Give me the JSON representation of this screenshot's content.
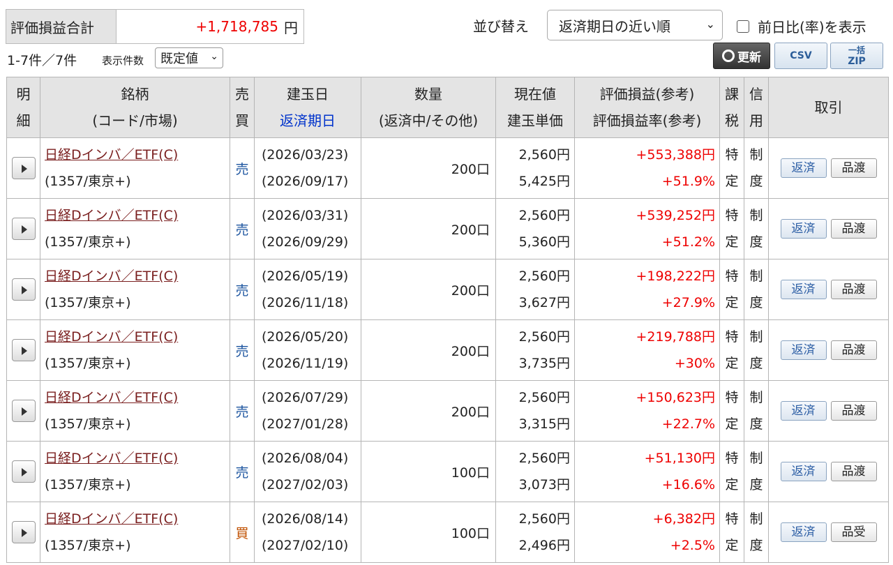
{
  "summary": {
    "label": "評価損益合計",
    "value": "+1,718,785",
    "unit": "円"
  },
  "sort": {
    "label": "並び替え",
    "selected": "返済期日の近い順",
    "toggle_label": "前日比(率)を表示"
  },
  "list": {
    "count": "1-7件／7件",
    "per_page_label": "表示件数",
    "per_page_value": "既定値"
  },
  "toolbar": {
    "refresh": "更新",
    "csv": "CSV",
    "zip": "ZIP",
    "zip_top": "一括"
  },
  "headers": {
    "detail_1": "明",
    "detail_2": "細",
    "name_1": "銘柄",
    "name_2": "(コード/市場)",
    "bs_1": "売",
    "bs_2": "買",
    "date_1": "建玉日",
    "date_2": "返済期日",
    "qty_1": "数量",
    "qty_2": "(返済中/その他)",
    "price_1": "現在値",
    "price_2": "建玉単価",
    "pl_1": "評価損益(参考)",
    "pl_2": "評価損益率(参考)",
    "tax_1": "課",
    "tax_2": "税",
    "mg_1": "信",
    "mg_2": "用",
    "action": "取引"
  },
  "rows": [
    {
      "name": "日経Dインバ／ETF(C)",
      "code": "(1357/東京+)",
      "side": "売",
      "open_date": "(2026/03/23)",
      "due_date": "(2026/09/17)",
      "qty": "200口",
      "current": "2,560円",
      "unit_price": "5,425円",
      "pl": "+553,388円",
      "pl_rate": "+51.9%",
      "tax_1": "特",
      "tax_2": "定",
      "mg_1": "制",
      "mg_2": "度",
      "act_1": "返済",
      "act_2": "品渡"
    },
    {
      "name": "日経Dインバ／ETF(C)",
      "code": "(1357/東京+)",
      "side": "売",
      "open_date": "(2026/03/31)",
      "due_date": "(2026/09/29)",
      "qty": "200口",
      "current": "2,560円",
      "unit_price": "5,360円",
      "pl": "+539,252円",
      "pl_rate": "+51.2%",
      "tax_1": "特",
      "tax_2": "定",
      "mg_1": "制",
      "mg_2": "度",
      "act_1": "返済",
      "act_2": "品渡"
    },
    {
      "name": "日経Dインバ／ETF(C)",
      "code": "(1357/東京+)",
      "side": "売",
      "open_date": "(2026/05/19)",
      "due_date": "(2026/11/18)",
      "qty": "200口",
      "current": "2,560円",
      "unit_price": "3,627円",
      "pl": "+198,222円",
      "pl_rate": "+27.9%",
      "tax_1": "特",
      "tax_2": "定",
      "mg_1": "制",
      "mg_2": "度",
      "act_1": "返済",
      "act_2": "品渡"
    },
    {
      "name": "日経Dインバ／ETF(C)",
      "code": "(1357/東京+)",
      "side": "売",
      "open_date": "(2026/05/20)",
      "due_date": "(2026/11/19)",
      "qty": "200口",
      "current": "2,560円",
      "unit_price": "3,735円",
      "pl": "+219,788円",
      "pl_rate": "+30%",
      "tax_1": "特",
      "tax_2": "定",
      "mg_1": "制",
      "mg_2": "度",
      "act_1": "返済",
      "act_2": "品渡"
    },
    {
      "name": "日経Dインバ／ETF(C)",
      "code": "(1357/東京+)",
      "side": "売",
      "open_date": "(2026/07/29)",
      "due_date": "(2027/01/28)",
      "qty": "200口",
      "current": "2,560円",
      "unit_price": "3,315円",
      "pl": "+150,623円",
      "pl_rate": "+22.7%",
      "tax_1": "特",
      "tax_2": "定",
      "mg_1": "制",
      "mg_2": "度",
      "act_1": "返済",
      "act_2": "品渡"
    },
    {
      "name": "日経Dインバ／ETF(C)",
      "code": "(1357/東京+)",
      "side": "売",
      "open_date": "(2026/08/04)",
      "due_date": "(2027/02/03)",
      "qty": "100口",
      "current": "2,560円",
      "unit_price": "3,073円",
      "pl": "+51,130円",
      "pl_rate": "+16.6%",
      "tax_1": "特",
      "tax_2": "定",
      "mg_1": "制",
      "mg_2": "度",
      "act_1": "返済",
      "act_2": "品渡"
    },
    {
      "name": "日経Dインバ／ETF(C)",
      "code": "(1357/東京+)",
      "side": "買",
      "open_date": "(2026/08/14)",
      "due_date": "(2027/02/10)",
      "qty": "100口",
      "current": "2,560円",
      "unit_price": "2,496円",
      "pl": "+6,382円",
      "pl_rate": "+2.5%",
      "tax_1": "特",
      "tax_2": "定",
      "mg_1": "制",
      "mg_2": "度",
      "act_1": "返済",
      "act_2": "品受"
    }
  ]
}
